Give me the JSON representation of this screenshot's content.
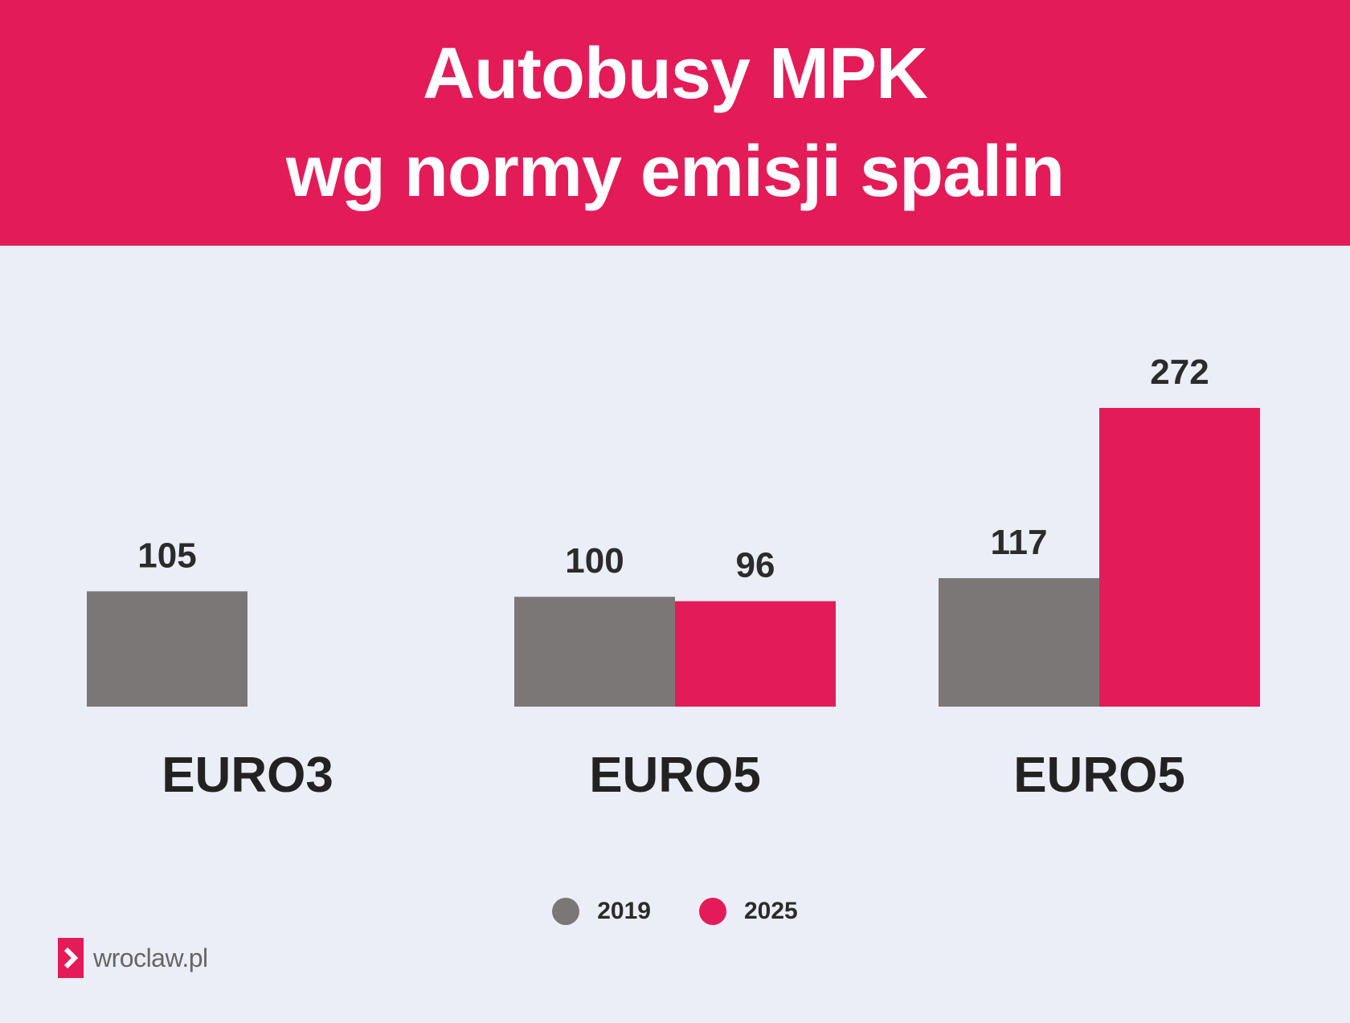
{
  "header": {
    "title_line1": "Autobusy MPK",
    "title_line2": "wg normy emisji spalin"
  },
  "colors": {
    "accent": "#e41b59",
    "gray": "#7b7777",
    "background": "#ebeef6"
  },
  "chart_data": {
    "type": "bar",
    "title": "Autobusy MPK wg normy emisji spalin",
    "categories": [
      "EURO3",
      "EURO5",
      "EURO5"
    ],
    "series": [
      {
        "name": "2019",
        "color": "#7b7777",
        "values": [
          105,
          100,
          117
        ]
      },
      {
        "name": "2025",
        "color": "#e41b59",
        "values": [
          null,
          96,
          272
        ]
      }
    ],
    "data_labels": [
      [
        "105",
        "100",
        "117"
      ],
      [
        null,
        "96",
        "272"
      ]
    ],
    "xlabel": "",
    "ylabel": "",
    "ylim": [
      0,
      272
    ],
    "grid": false,
    "legend_position": "bottom-center"
  },
  "legend": {
    "items": [
      {
        "label": "2019",
        "icon": "gray-dot-icon"
      },
      {
        "label": "2025",
        "icon": "pink-dot-icon"
      }
    ]
  },
  "logo": {
    "text": "wroclaw.pl",
    "icon": "chevron-right-icon"
  }
}
